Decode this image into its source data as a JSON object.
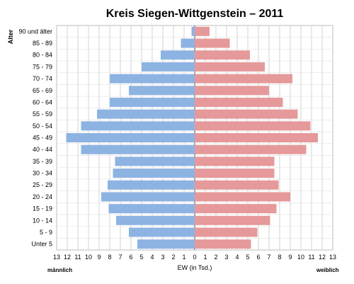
{
  "chart_data": {
    "type": "bar",
    "orientation": "horizontal",
    "title": "Kreis Siegen-Wittgenstein – 2011",
    "ylabel": "Alter",
    "xlabel": "EW (in Tsd.)",
    "left_label": "männlich",
    "right_label": "weiblich",
    "x_ticks": [
      "13",
      "12",
      "11",
      "10",
      "9",
      "8",
      "7",
      "6",
      "5",
      "4",
      "3",
      "2",
      "1",
      "0",
      "1",
      "2",
      "3",
      "4",
      "5",
      "6",
      "7",
      "8",
      "9",
      "10",
      "11",
      "12",
      "13"
    ],
    "xlim": [
      -13,
      13
    ],
    "grid": true,
    "categories": [
      "90 und älter",
      "85 - 89",
      "80 - 84",
      "75 - 79",
      "70 - 74",
      "65 - 69",
      "60 - 64",
      "55 - 59",
      "50 - 54",
      "45 - 49",
      "40 - 44",
      "35 - 39",
      "30 - 34",
      "25 - 29",
      "20 - 24",
      "15 - 19",
      "10 - 14",
      "5 - 9",
      "Unter 5"
    ],
    "series": [
      {
        "name": "männlich",
        "color": "#8db3e2",
        "values": [
          0.3,
          1.3,
          3.2,
          5.0,
          8.0,
          6.2,
          8.0,
          9.2,
          10.7,
          12.1,
          10.7,
          7.5,
          7.7,
          8.2,
          8.8,
          8.1,
          7.4,
          6.2,
          5.4
        ]
      },
      {
        "name": "weiblich",
        "color": "#e6999a",
        "values": [
          1.4,
          3.3,
          5.2,
          6.6,
          9.2,
          7.0,
          8.3,
          9.7,
          10.9,
          11.6,
          10.5,
          7.5,
          7.5,
          7.9,
          9.0,
          7.7,
          7.1,
          5.9,
          5.3
        ]
      }
    ]
  }
}
